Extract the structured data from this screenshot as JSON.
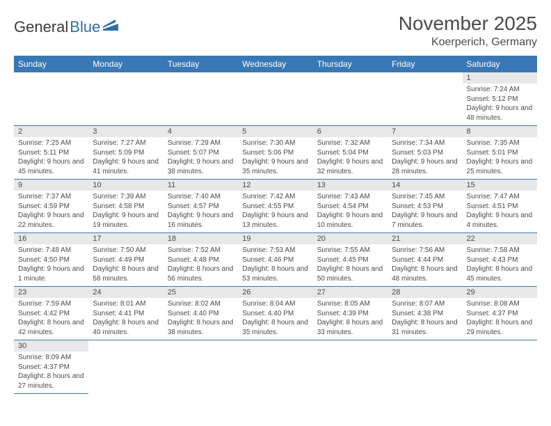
{
  "logo": {
    "part1": "General",
    "part2": "Blue"
  },
  "title": "November 2025",
  "location": "Koerperich, Germany",
  "colors": {
    "header_bg": "#3a78b5",
    "header_text": "#ffffff",
    "daynum_bg": "#e8e8e8",
    "border": "#3a78b5",
    "text": "#4a4a4a",
    "logo_blue": "#2f6ca8"
  },
  "day_headers": [
    "Sunday",
    "Monday",
    "Tuesday",
    "Wednesday",
    "Thursday",
    "Friday",
    "Saturday"
  ],
  "weeks": [
    [
      {
        "n": "",
        "lines": []
      },
      {
        "n": "",
        "lines": []
      },
      {
        "n": "",
        "lines": []
      },
      {
        "n": "",
        "lines": []
      },
      {
        "n": "",
        "lines": []
      },
      {
        "n": "",
        "lines": []
      },
      {
        "n": "1",
        "lines": [
          "Sunrise: 7:24 AM",
          "Sunset: 5:12 PM",
          "Daylight: 9 hours and 48 minutes."
        ]
      }
    ],
    [
      {
        "n": "2",
        "lines": [
          "Sunrise: 7:25 AM",
          "Sunset: 5:11 PM",
          "Daylight: 9 hours and 45 minutes."
        ]
      },
      {
        "n": "3",
        "lines": [
          "Sunrise: 7:27 AM",
          "Sunset: 5:09 PM",
          "Daylight: 9 hours and 41 minutes."
        ]
      },
      {
        "n": "4",
        "lines": [
          "Sunrise: 7:29 AM",
          "Sunset: 5:07 PM",
          "Daylight: 9 hours and 38 minutes."
        ]
      },
      {
        "n": "5",
        "lines": [
          "Sunrise: 7:30 AM",
          "Sunset: 5:06 PM",
          "Daylight: 9 hours and 35 minutes."
        ]
      },
      {
        "n": "6",
        "lines": [
          "Sunrise: 7:32 AM",
          "Sunset: 5:04 PM",
          "Daylight: 9 hours and 32 minutes."
        ]
      },
      {
        "n": "7",
        "lines": [
          "Sunrise: 7:34 AM",
          "Sunset: 5:03 PM",
          "Daylight: 9 hours and 28 minutes."
        ]
      },
      {
        "n": "8",
        "lines": [
          "Sunrise: 7:35 AM",
          "Sunset: 5:01 PM",
          "Daylight: 9 hours and 25 minutes."
        ]
      }
    ],
    [
      {
        "n": "9",
        "lines": [
          "Sunrise: 7:37 AM",
          "Sunset: 4:59 PM",
          "Daylight: 9 hours and 22 minutes."
        ]
      },
      {
        "n": "10",
        "lines": [
          "Sunrise: 7:39 AM",
          "Sunset: 4:58 PM",
          "Daylight: 9 hours and 19 minutes."
        ]
      },
      {
        "n": "11",
        "lines": [
          "Sunrise: 7:40 AM",
          "Sunset: 4:57 PM",
          "Daylight: 9 hours and 16 minutes."
        ]
      },
      {
        "n": "12",
        "lines": [
          "Sunrise: 7:42 AM",
          "Sunset: 4:55 PM",
          "Daylight: 9 hours and 13 minutes."
        ]
      },
      {
        "n": "13",
        "lines": [
          "Sunrise: 7:43 AM",
          "Sunset: 4:54 PM",
          "Daylight: 9 hours and 10 minutes."
        ]
      },
      {
        "n": "14",
        "lines": [
          "Sunrise: 7:45 AM",
          "Sunset: 4:53 PM",
          "Daylight: 9 hours and 7 minutes."
        ]
      },
      {
        "n": "15",
        "lines": [
          "Sunrise: 7:47 AM",
          "Sunset: 4:51 PM",
          "Daylight: 9 hours and 4 minutes."
        ]
      }
    ],
    [
      {
        "n": "16",
        "lines": [
          "Sunrise: 7:48 AM",
          "Sunset: 4:50 PM",
          "Daylight: 9 hours and 1 minute."
        ]
      },
      {
        "n": "17",
        "lines": [
          "Sunrise: 7:50 AM",
          "Sunset: 4:49 PM",
          "Daylight: 8 hours and 58 minutes."
        ]
      },
      {
        "n": "18",
        "lines": [
          "Sunrise: 7:52 AM",
          "Sunset: 4:48 PM",
          "Daylight: 8 hours and 56 minutes."
        ]
      },
      {
        "n": "19",
        "lines": [
          "Sunrise: 7:53 AM",
          "Sunset: 4:46 PM",
          "Daylight: 8 hours and 53 minutes."
        ]
      },
      {
        "n": "20",
        "lines": [
          "Sunrise: 7:55 AM",
          "Sunset: 4:45 PM",
          "Daylight: 8 hours and 50 minutes."
        ]
      },
      {
        "n": "21",
        "lines": [
          "Sunrise: 7:56 AM",
          "Sunset: 4:44 PM",
          "Daylight: 8 hours and 48 minutes."
        ]
      },
      {
        "n": "22",
        "lines": [
          "Sunrise: 7:58 AM",
          "Sunset: 4:43 PM",
          "Daylight: 8 hours and 45 minutes."
        ]
      }
    ],
    [
      {
        "n": "23",
        "lines": [
          "Sunrise: 7:59 AM",
          "Sunset: 4:42 PM",
          "Daylight: 8 hours and 42 minutes."
        ]
      },
      {
        "n": "24",
        "lines": [
          "Sunrise: 8:01 AM",
          "Sunset: 4:41 PM",
          "Daylight: 8 hours and 40 minutes."
        ]
      },
      {
        "n": "25",
        "lines": [
          "Sunrise: 8:02 AM",
          "Sunset: 4:40 PM",
          "Daylight: 8 hours and 38 minutes."
        ]
      },
      {
        "n": "26",
        "lines": [
          "Sunrise: 8:04 AM",
          "Sunset: 4:40 PM",
          "Daylight: 8 hours and 35 minutes."
        ]
      },
      {
        "n": "27",
        "lines": [
          "Sunrise: 8:05 AM",
          "Sunset: 4:39 PM",
          "Daylight: 8 hours and 33 minutes."
        ]
      },
      {
        "n": "28",
        "lines": [
          "Sunrise: 8:07 AM",
          "Sunset: 4:38 PM",
          "Daylight: 8 hours and 31 minutes."
        ]
      },
      {
        "n": "29",
        "lines": [
          "Sunrise: 8:08 AM",
          "Sunset: 4:37 PM",
          "Daylight: 8 hours and 29 minutes."
        ]
      }
    ],
    [
      {
        "n": "30",
        "lines": [
          "Sunrise: 8:09 AM",
          "Sunset: 4:37 PM",
          "Daylight: 8 hours and 27 minutes."
        ]
      },
      {
        "n": "",
        "lines": []
      },
      {
        "n": "",
        "lines": []
      },
      {
        "n": "",
        "lines": []
      },
      {
        "n": "",
        "lines": []
      },
      {
        "n": "",
        "lines": []
      },
      {
        "n": "",
        "lines": []
      }
    ]
  ]
}
